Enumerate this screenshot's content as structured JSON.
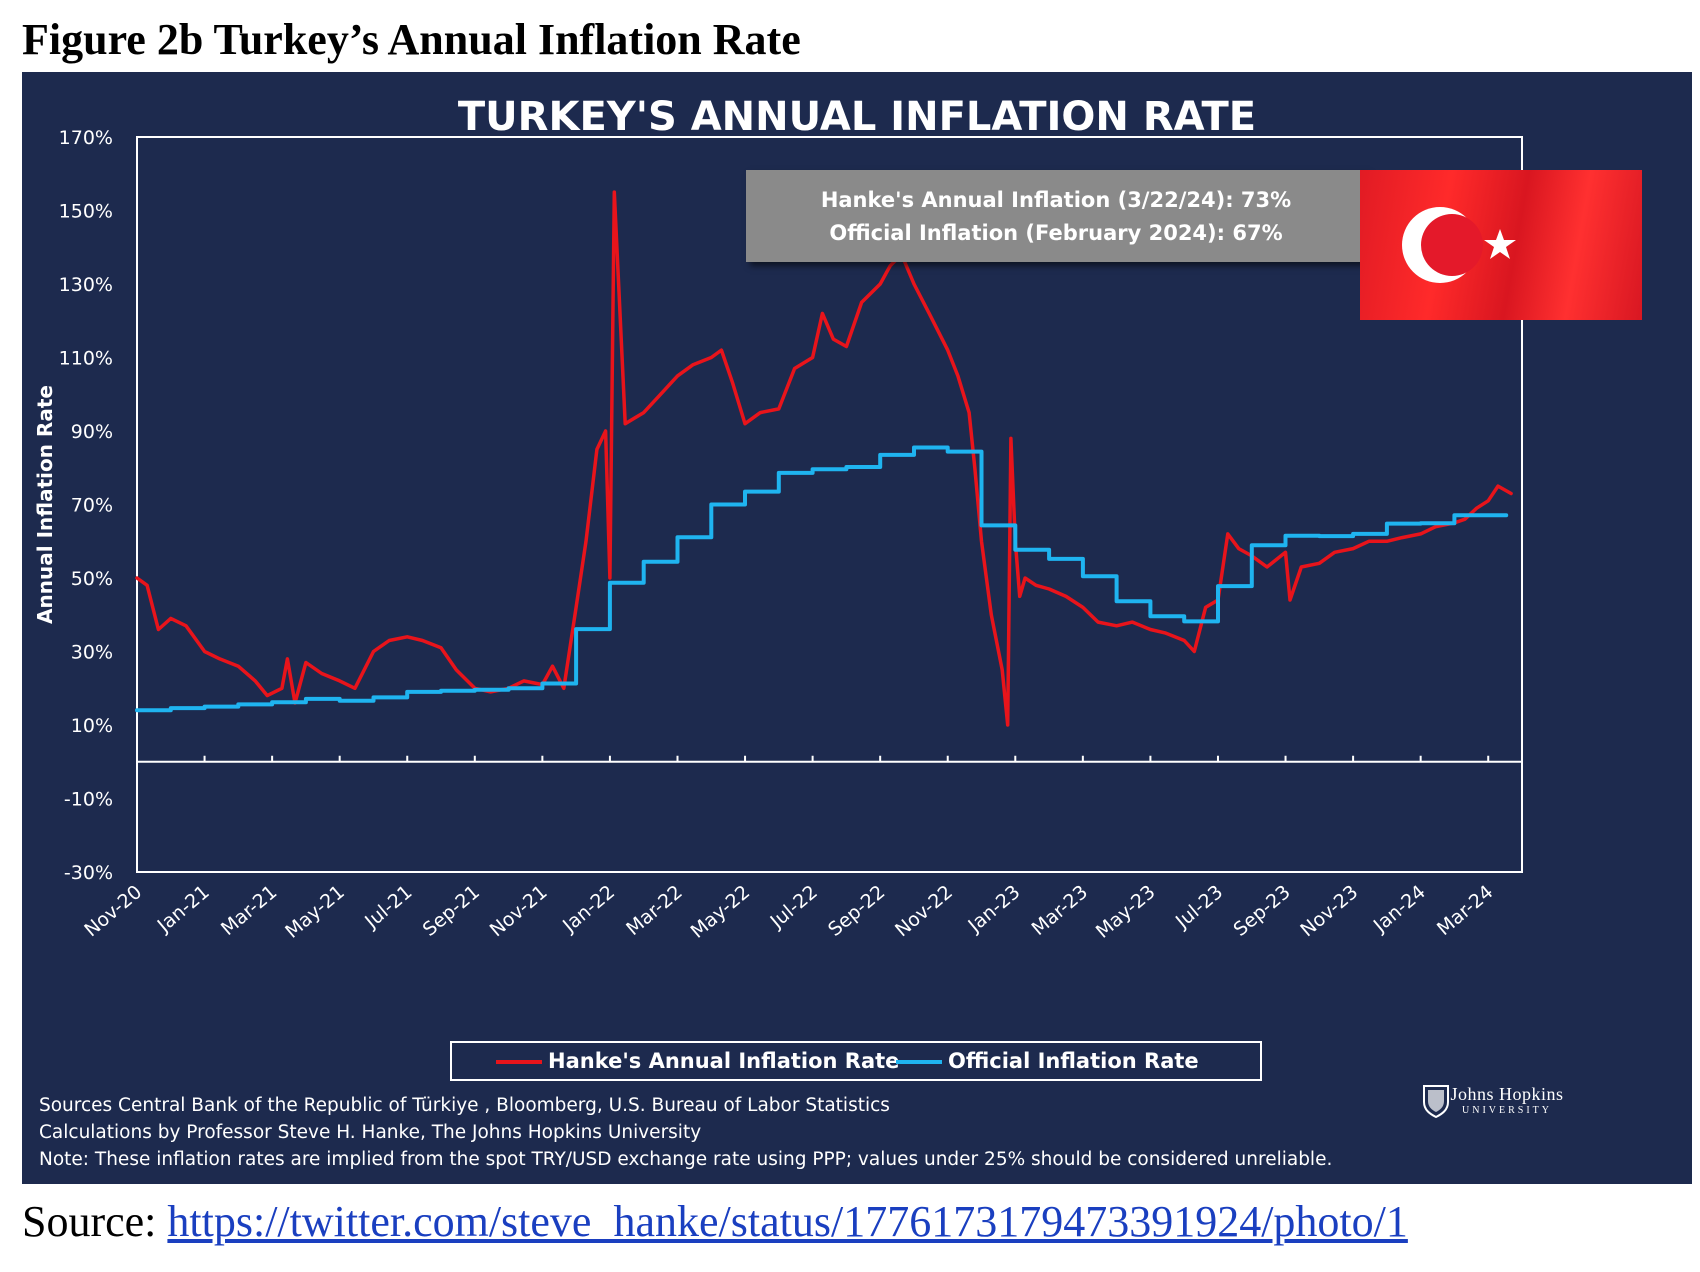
{
  "figure_title": "Figure 2b Turkey’s Annual Inflation Rate",
  "chart": {
    "title": "TURKEY'S ANNUAL INFLATION RATE",
    "info_line1": "Hanke's Annual Inflation (3/22/24): 73%",
    "info_line2": "Official Inflation (February 2024): 67%",
    "legend_hanke": "Hanke's Annual Inflation Rate",
    "legend_official": "Official Inflation Rate",
    "notes": [
      "Sources Central Bank of the Republic of Türkiye , Bloomberg, U.S. Bureau of Labor Statistics",
      "Calculations by Professor Steve H. Hanke, The Johns Hopkins University",
      "Note: These inflation rates are implied from the spot TRY/USD exchange rate using PPP; values under 25% should be considered unreliable."
    ],
    "logo_name": "Johns Hopkins",
    "logo_sub": "UNIVERSITY",
    "flag_icon": "turkish-flag-icon"
  },
  "colors": {
    "background": "#1d2a4e",
    "hanke": "#e8141b",
    "official": "#1fb4f0",
    "axis": "#ffffff"
  },
  "source": {
    "prefix": "Source: ",
    "url": "https://twitter.com/steve_hanke/status/1776173179473391924/photo/1"
  },
  "chart_data": {
    "type": "line",
    "title": "TURKEY'S ANNUAL INFLATION RATE",
    "ylabel": "Annual Inflation Rate",
    "xlabel": "",
    "ylim": [
      -30,
      170
    ],
    "yticks": [
      -30,
      -10,
      10,
      30,
      50,
      70,
      90,
      110,
      130,
      150,
      170
    ],
    "ytick_labels": [
      "-30%",
      "-10%",
      "10%",
      "30%",
      "50%",
      "70%",
      "90%",
      "110%",
      "130%",
      "150%",
      "170%"
    ],
    "xlim": [
      "2020-11",
      "2024-04"
    ],
    "xticks": [
      "Nov-20",
      "Jan-21",
      "Mar-21",
      "May-21",
      "Jul-21",
      "Sep-21",
      "Nov-21",
      "Jan-22",
      "Mar-22",
      "May-22",
      "Jul-22",
      "Sep-22",
      "Nov-22",
      "Jan-23",
      "Mar-23",
      "May-23",
      "Jul-23",
      "Sep-23",
      "Nov-23",
      "Jan-24",
      "Mar-24"
    ],
    "legend": "bottom",
    "grid": false,
    "series": [
      {
        "name": "Hanke's Annual Inflation Rate",
        "color": "#e8141b",
        "x": [
          "2020-11-01",
          "2020-11-10",
          "2020-11-20",
          "2020-12-01",
          "2020-12-15",
          "2021-01-01",
          "2021-01-15",
          "2021-02-01",
          "2021-02-15",
          "2021-02-25",
          "2021-03-10",
          "2021-03-15",
          "2021-03-22",
          "2021-04-01",
          "2021-04-15",
          "2021-05-01",
          "2021-05-15",
          "2021-06-01",
          "2021-06-15",
          "2021-07-01",
          "2021-07-15",
          "2021-08-01",
          "2021-08-15",
          "2021-09-01",
          "2021-09-15",
          "2021-10-01",
          "2021-10-15",
          "2021-11-01",
          "2021-11-10",
          "2021-11-20",
          "2021-12-01",
          "2021-12-10",
          "2021-12-20",
          "2021-12-28",
          "2022-01-01",
          "2022-01-05",
          "2022-01-15",
          "2022-02-01",
          "2022-02-15",
          "2022-03-01",
          "2022-03-15",
          "2022-04-01",
          "2022-04-10",
          "2022-04-20",
          "2022-05-01",
          "2022-05-15",
          "2022-06-01",
          "2022-06-15",
          "2022-07-01",
          "2022-07-10",
          "2022-07-20",
          "2022-08-01",
          "2022-08-15",
          "2022-09-01",
          "2022-09-10",
          "2022-09-20",
          "2022-10-01",
          "2022-10-15",
          "2022-11-01",
          "2022-11-10",
          "2022-11-20",
          "2022-11-25",
          "2022-12-01",
          "2022-12-10",
          "2022-12-20",
          "2022-12-25",
          "2022-12-28",
          "2023-01-01",
          "2023-01-05",
          "2023-01-10",
          "2023-01-20",
          "2023-02-01",
          "2023-02-15",
          "2023-03-01",
          "2023-03-15",
          "2023-04-01",
          "2023-04-15",
          "2023-05-01",
          "2023-05-15",
          "2023-06-01",
          "2023-06-10",
          "2023-06-20",
          "2023-07-01",
          "2023-07-10",
          "2023-07-20",
          "2023-08-01",
          "2023-08-15",
          "2023-09-01",
          "2023-09-05",
          "2023-09-15",
          "2023-10-01",
          "2023-10-15",
          "2023-11-01",
          "2023-11-15",
          "2023-12-01",
          "2023-12-15",
          "2024-01-01",
          "2024-01-15",
          "2024-02-01",
          "2024-02-10",
          "2024-02-20",
          "2024-03-01",
          "2024-03-10",
          "2024-03-22"
        ],
        "y": [
          50,
          48,
          36,
          39,
          37,
          30,
          28,
          26,
          22,
          18,
          20,
          28,
          16,
          27,
          24,
          22,
          20,
          30,
          33,
          34,
          33,
          31,
          25,
          20,
          19,
          20,
          22,
          21,
          26,
          20,
          42,
          60,
          85,
          90,
          50,
          155,
          92,
          95,
          100,
          105,
          108,
          110,
          112,
          103,
          92,
          95,
          96,
          107,
          110,
          122,
          115,
          113,
          125,
          130,
          135,
          138,
          130,
          122,
          112,
          105,
          95,
          80,
          60,
          40,
          25,
          10,
          88,
          60,
          45,
          50,
          48,
          47,
          45,
          42,
          38,
          37,
          38,
          36,
          35,
          33,
          30,
          42,
          44,
          62,
          58,
          56,
          53,
          57,
          44,
          53,
          54,
          57,
          58,
          60,
          60,
          61,
          62,
          64,
          65,
          66,
          69,
          71,
          75,
          73
        ]
      },
      {
        "name": "Official Inflation Rate",
        "color": "#1fb4f0",
        "x": [
          "2020-11-01",
          "2020-12-01",
          "2021-01-01",
          "2021-02-01",
          "2021-03-01",
          "2021-04-01",
          "2021-05-01",
          "2021-06-01",
          "2021-07-01",
          "2021-08-01",
          "2021-09-01",
          "2021-10-01",
          "2021-11-01",
          "2021-12-01",
          "2022-01-01",
          "2022-02-01",
          "2022-03-01",
          "2022-04-01",
          "2022-05-01",
          "2022-06-01",
          "2022-07-01",
          "2022-08-01",
          "2022-09-01",
          "2022-10-01",
          "2022-11-01",
          "2022-12-01",
          "2023-01-01",
          "2023-02-01",
          "2023-03-01",
          "2023-04-01",
          "2023-05-01",
          "2023-06-01",
          "2023-07-01",
          "2023-08-01",
          "2023-09-01",
          "2023-10-01",
          "2023-11-01",
          "2023-12-01",
          "2024-01-01",
          "2024-02-01",
          "2024-03-01"
        ],
        "y": [
          14,
          14.6,
          15,
          15.6,
          16.2,
          17.1,
          16.6,
          17.5,
          19,
          19.3,
          19.6,
          20,
          21.3,
          36.1,
          48.7,
          54.4,
          61.1,
          70,
          73.5,
          78.6,
          79.6,
          80.2,
          83.5,
          85.5,
          84.4,
          64.3,
          57.7,
          55.2,
          50.5,
          43.7,
          39.6,
          38.2,
          47.8,
          58.9,
          61.5,
          61.4,
          62,
          64.8,
          64.9,
          67.1,
          67.1
        ]
      }
    ]
  }
}
